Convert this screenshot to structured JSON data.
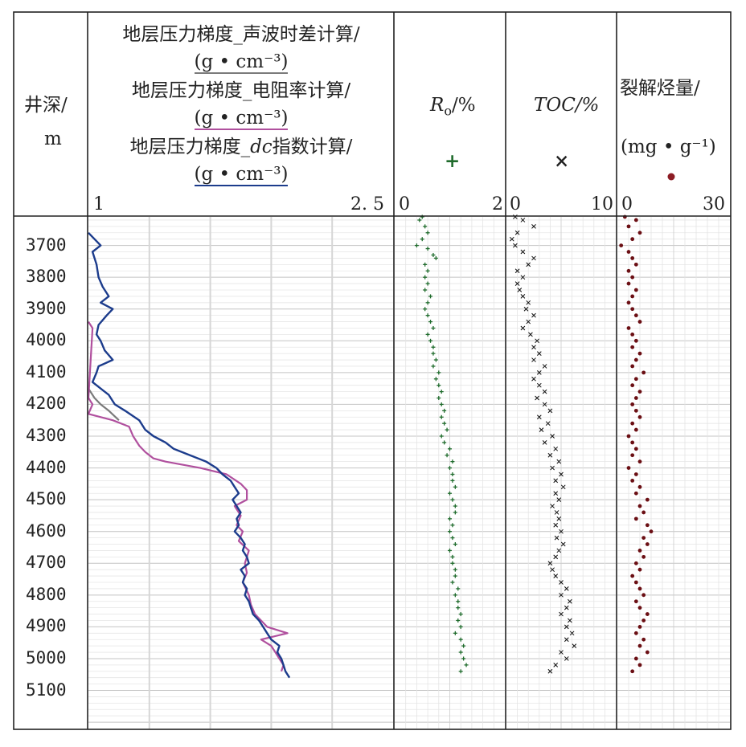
{
  "header": {
    "depth_label": "井深/",
    "depth_unit": "m",
    "pressure_title_1": "地层压力梯度_声波时差计算/",
    "pressure_title_2": "地层压力梯度_电阻率计算/",
    "pressure_title_3_prefix": "地层压力梯度_",
    "pressure_title_3_italic": "dc",
    "pressure_title_3_suffix": "指数计算/",
    "pressure_unit_1": "(g • cm⁻³)",
    "pressure_unit_2": "(g • cm⁻³)",
    "pressure_unit_3": "(g • cm⁻³)",
    "pressure_min": "1",
    "pressure_max": "2. 5",
    "ro_title_main": "R",
    "ro_title_sub": "o",
    "ro_title_unit": "/%",
    "ro_min": "0",
    "ro_max": "2",
    "toc_title": "TOC/%",
    "toc_min": "0",
    "toc_max": "10",
    "crack_title": "裂解烃量/",
    "crack_unit": "(mg • g⁻¹)",
    "crack_min": "0",
    "crack_max": "30",
    "ro_symbol": "+",
    "toc_symbol": "×"
  },
  "colors": {
    "acoustic": "#7a7a7a",
    "resistivity": "#b0509e",
    "dc": "#1c3c8c",
    "ro": "#1f6b2c",
    "toc": "#111111",
    "crack": "#6b0f14",
    "grid": "#d0d0d0",
    "major_grid": "#c4c4c4"
  },
  "chart_data": {
    "type": "line",
    "depth_axis": {
      "label": "井深/m",
      "range": [
        3610,
        5220
      ],
      "ticks": [
        3700,
        3800,
        3900,
        4000,
        4100,
        4200,
        4300,
        4400,
        4500,
        4600,
        4700,
        4800,
        4900,
        5000,
        5100
      ]
    },
    "tracks": [
      {
        "name": "pressure",
        "xlim": [
          1,
          2.5
        ],
        "series": [
          {
            "name": "地层压力梯度_声波时差计算",
            "color_key": "acoustic",
            "depth": [
              4150,
              4180,
              4200,
              4220,
              4250
            ],
            "values": [
              1.0,
              1.03,
              1.06,
              1.1,
              1.15
            ]
          },
          {
            "name": "地层压力梯度_电阻率计算",
            "color_key": "resistivity",
            "depth": [
              3940,
              3960,
              4180,
              4200,
              4230,
              4250,
              4270,
              4300,
              4330,
              4350,
              4370,
              4380,
              4400,
              4420,
              4450,
              4470,
              4480,
              4500,
              4520,
              4550,
              4580,
              4600,
              4630,
              4660,
              4700,
              4730,
              4760,
              4800,
              4830,
              4860,
              4900,
              4920,
              4940,
              4960,
              4980,
              5000,
              5020,
              5040
            ],
            "values": [
              1.0,
              1.02,
              1.0,
              1.02,
              1.0,
              1.12,
              1.2,
              1.22,
              1.25,
              1.28,
              1.32,
              1.38,
              1.55,
              1.68,
              1.75,
              1.78,
              1.78,
              1.78,
              1.72,
              1.75,
              1.73,
              1.76,
              1.74,
              1.79,
              1.77,
              1.78,
              1.76,
              1.79,
              1.8,
              1.82,
              1.88,
              1.98,
              1.85,
              1.9,
              1.92,
              1.94,
              1.96,
              1.95
            ]
          },
          {
            "name": "地层压力梯度_dc指数计算",
            "color_key": "dc",
            "depth": [
              3660,
              3680,
              3700,
              3720,
              3760,
              3800,
              3830,
              3860,
              3880,
              3900,
              3920,
              3950,
              3980,
              4000,
              4030,
              4060,
              4080,
              4100,
              4130,
              4150,
              4170,
              4200,
              4220,
              4250,
              4280,
              4300,
              4320,
              4340,
              4360,
              4380,
              4400,
              4420,
              4440,
              4460,
              4480,
              4500,
              4520,
              4540,
              4560,
              4580,
              4600,
              4620,
              4640,
              4660,
              4680,
              4700,
              4720,
              4740,
              4760,
              4780,
              4800,
              4820,
              4840,
              4860,
              4880,
              4900,
              4920,
              4940,
              4960,
              4980,
              5000,
              5020,
              5040,
              5060
            ],
            "values": [
              1.0,
              1.03,
              1.06,
              1.02,
              1.04,
              1.05,
              1.07,
              1.1,
              1.06,
              1.12,
              1.09,
              1.05,
              1.04,
              1.06,
              1.08,
              1.12,
              1.05,
              1.04,
              1.02,
              1.06,
              1.1,
              1.13,
              1.18,
              1.25,
              1.28,
              1.32,
              1.38,
              1.42,
              1.5,
              1.58,
              1.63,
              1.66,
              1.7,
              1.72,
              1.74,
              1.71,
              1.73,
              1.75,
              1.73,
              1.74,
              1.72,
              1.75,
              1.77,
              1.76,
              1.78,
              1.79,
              1.75,
              1.77,
              1.76,
              1.78,
              1.77,
              1.79,
              1.8,
              1.81,
              1.84,
              1.86,
              1.88,
              1.9,
              1.94,
              1.93,
              1.95,
              1.96,
              1.97,
              1.99
            ]
          }
        ]
      },
      {
        "name": "Ro",
        "xlim": [
          0,
          2
        ],
        "series": [
          {
            "name": "Ro",
            "color_key": "ro",
            "depth": [
              3610,
              3620,
              3640,
              3660,
              3680,
              3700,
              3710,
              3730,
              3740,
              3760,
              3780,
              3800,
              3820,
              3840,
              3860,
              3880,
              3900,
              3920,
              3940,
              3960,
              3980,
              4000,
              4020,
              4040,
              4060,
              4080,
              4100,
              4120,
              4140,
              4160,
              4180,
              4200,
              4220,
              4240,
              4260,
              4280,
              4300,
              4320,
              4340,
              4360,
              4380,
              4400,
              4420,
              4440,
              4460,
              4480,
              4500,
              4520,
              4540,
              4560,
              4580,
              4600,
              4620,
              4640,
              4660,
              4680,
              4700,
              4720,
              4740,
              4760,
              4780,
              4800,
              4820,
              4840,
              4860,
              4880,
              4900,
              4920,
              4940,
              4960,
              4980,
              5000,
              5020,
              5040
            ],
            "values": [
              0.5,
              0.45,
              0.55,
              0.6,
              0.5,
              0.4,
              0.6,
              0.7,
              0.75,
              0.55,
              0.6,
              0.55,
              0.6,
              0.55,
              0.65,
              0.6,
              0.55,
              0.6,
              0.65,
              0.7,
              0.6,
              0.65,
              0.7,
              0.7,
              0.75,
              0.7,
              0.8,
              0.75,
              0.8,
              0.85,
              0.8,
              0.85,
              0.9,
              0.85,
              0.9,
              0.95,
              0.85,
              0.9,
              1.0,
              0.95,
              1.05,
              1.0,
              1.05,
              1.05,
              1.1,
              1.0,
              1.05,
              1.1,
              1.1,
              1.0,
              1.05,
              1.0,
              1.05,
              1.1,
              1.0,
              1.05,
              1.05,
              1.1,
              1.1,
              1.05,
              1.15,
              1.1,
              1.15,
              1.15,
              1.2,
              1.15,
              1.2,
              1.1,
              1.2,
              1.25,
              1.2,
              1.25,
              1.3,
              1.2
            ]
          }
        ]
      },
      {
        "name": "TOC",
        "xlim": [
          0,
          10
        ],
        "series": [
          {
            "name": "TOC",
            "color_key": "toc",
            "depth": [
              3610,
              3620,
              3640,
              3660,
              3680,
              3700,
              3720,
              3740,
              3760,
              3780,
              3800,
              3820,
              3840,
              3860,
              3880,
              3900,
              3920,
              3940,
              3960,
              3980,
              4000,
              4020,
              4040,
              4060,
              4080,
              4100,
              4120,
              4140,
              4160,
              4180,
              4200,
              4220,
              4240,
              4260,
              4280,
              4300,
              4320,
              4340,
              4360,
              4380,
              4400,
              4420,
              4440,
              4460,
              4480,
              4500,
              4520,
              4540,
              4560,
              4580,
              4600,
              4620,
              4640,
              4660,
              4680,
              4700,
              4720,
              4740,
              4760,
              4780,
              4800,
              4820,
              4840,
              4860,
              4880,
              4900,
              4920,
              4940,
              4960,
              4980,
              5000,
              5020,
              5040
            ],
            "values": [
              0.8,
              1.5,
              2.5,
              1.0,
              0.5,
              0.8,
              1.5,
              2.5,
              2.0,
              1.0,
              1.5,
              1.0,
              1.2,
              1.5,
              2.0,
              1.8,
              2.5,
              2.0,
              1.5,
              2.2,
              2.8,
              2.5,
              3.0,
              2.5,
              3.5,
              3.0,
              2.5,
              3.0,
              3.5,
              2.8,
              3.5,
              4.0,
              3.0,
              3.8,
              3.2,
              4.2,
              3.5,
              4.5,
              4.0,
              4.8,
              4.2,
              5.0,
              4.5,
              5.2,
              4.5,
              4.8,
              4.2,
              4.6,
              4.8,
              4.5,
              5.0,
              4.6,
              5.2,
              4.8,
              4.5,
              4.0,
              4.2,
              4.5,
              5.0,
              5.5,
              5.0,
              5.8,
              5.5,
              5.0,
              5.8,
              5.5,
              6.0,
              5.5,
              6.2,
              5.0,
              5.5,
              4.5,
              4.0
            ]
          }
        ]
      },
      {
        "name": "裂解烃量",
        "xlim": [
          0,
          30
        ],
        "series": [
          {
            "name": "裂解烃量",
            "color_key": "crack",
            "depth": [
              3610,
              3620,
              3640,
              3660,
              3680,
              3700,
              3720,
              3740,
              3760,
              3780,
              3800,
              3820,
              3840,
              3860,
              3880,
              3900,
              3920,
              3940,
              3960,
              3980,
              4000,
              4020,
              4040,
              4060,
              4080,
              4100,
              4120,
              4140,
              4160,
              4180,
              4200,
              4220,
              4240,
              4260,
              4280,
              4300,
              4320,
              4340,
              4360,
              4380,
              4400,
              4420,
              4440,
              4460,
              4480,
              4500,
              4520,
              4540,
              4560,
              4580,
              4600,
              4620,
              4640,
              4660,
              4680,
              4700,
              4720,
              4740,
              4760,
              4780,
              4800,
              4820,
              4840,
              4860,
              4880,
              4900,
              4920,
              4940,
              4960,
              4980,
              5000,
              5020,
              5040
            ],
            "values": [
              2,
              5,
              3,
              6,
              4,
              1,
              3,
              4,
              5,
              3,
              4,
              3,
              5,
              4,
              3,
              4,
              5,
              6,
              3,
              4,
              5,
              4,
              6,
              5,
              4,
              7,
              5,
              4,
              6,
              5,
              4,
              5,
              6,
              4,
              5,
              3,
              4,
              5,
              4,
              6,
              3,
              5,
              4,
              6,
              5,
              8,
              6,
              7,
              5,
              8,
              9,
              7,
              8,
              6,
              7,
              5,
              6,
              4,
              5,
              6,
              7,
              5,
              6,
              8,
              7,
              6,
              5,
              7,
              6,
              8,
              5,
              6,
              4
            ]
          }
        ]
      }
    ]
  }
}
